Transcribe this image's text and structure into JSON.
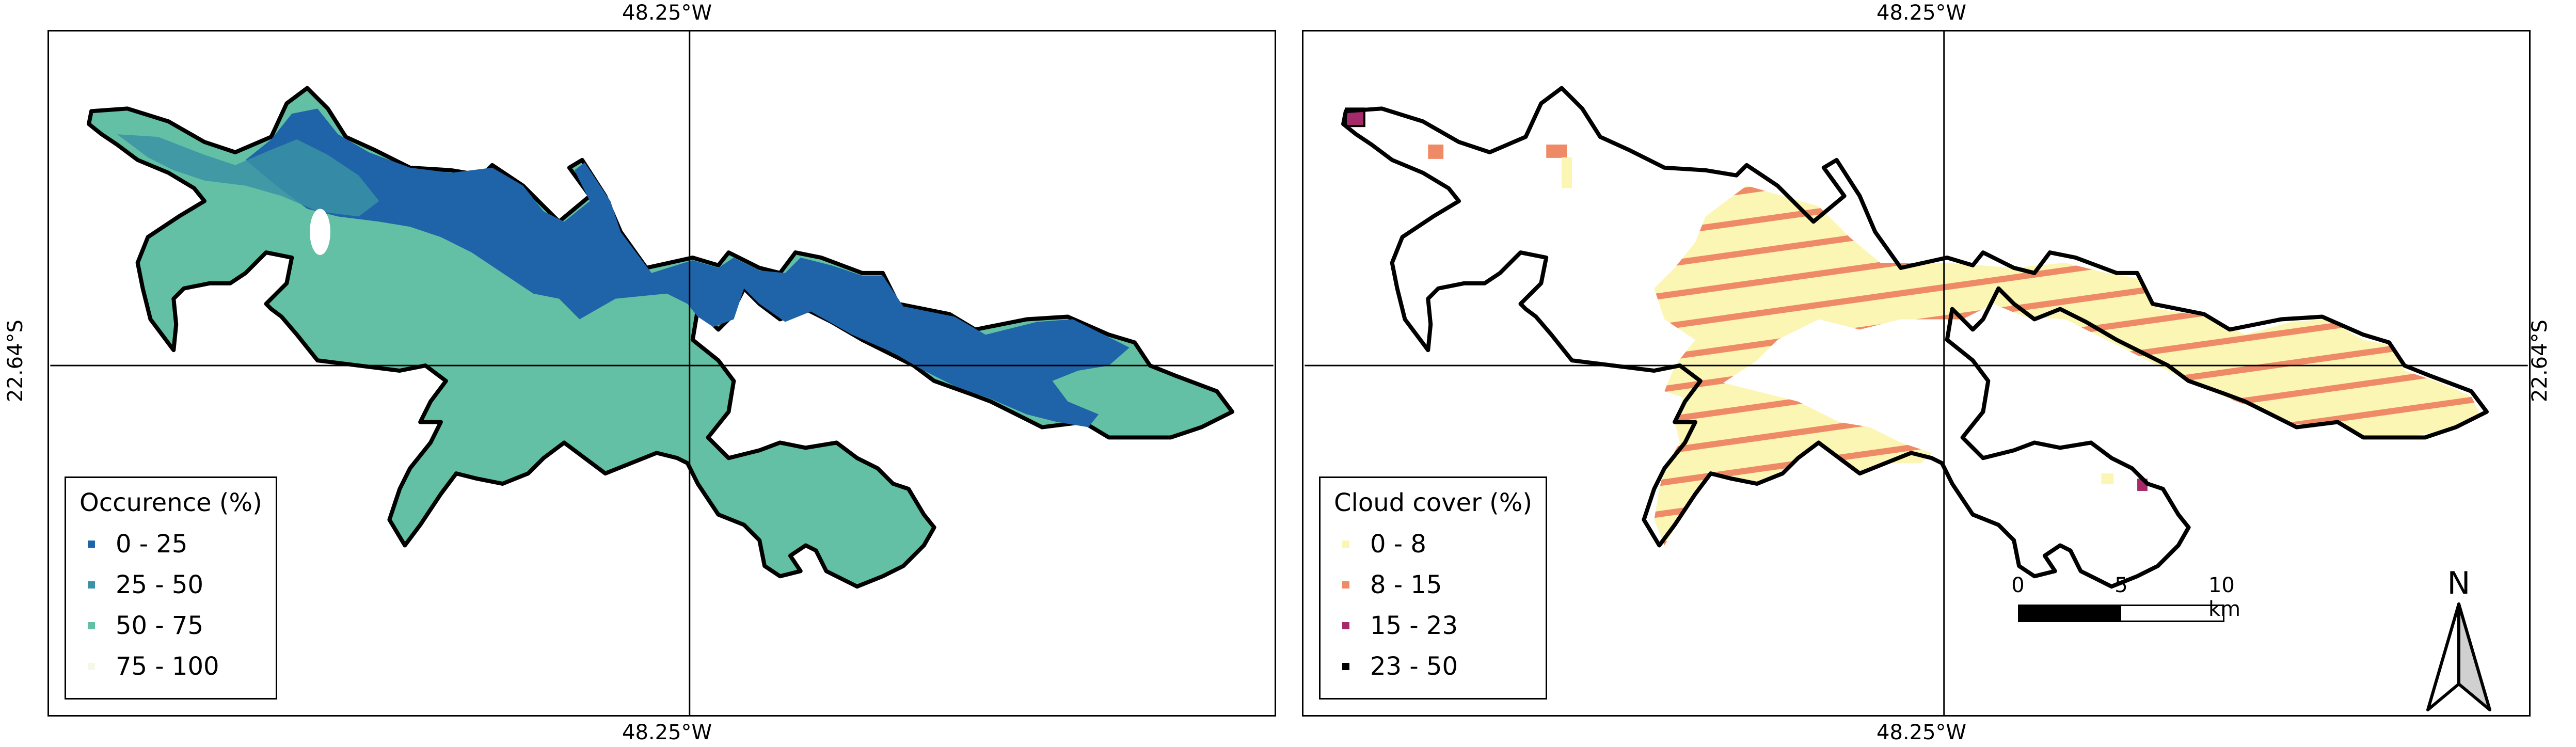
{
  "coords": {
    "top_lon": "48.25°W",
    "bottom_lon": "48.25°W",
    "lat": "22.64°S"
  },
  "left_map": {
    "legend": {
      "title": "Occurence (%)",
      "items": [
        {
          "label": "0 - 25",
          "color": "#1f64a8"
        },
        {
          "label": "25 - 50",
          "color": "#3a92a6"
        },
        {
          "label": "50 - 75",
          "color": "#63c0a4"
        },
        {
          "label": "75 - 100",
          "color": "#f4f8e8"
        }
      ]
    }
  },
  "right_map": {
    "legend": {
      "title": "Cloud cover (%)",
      "items": [
        {
          "label": "0 - 8",
          "color": "#fbf6b4"
        },
        {
          "label": "8 - 15",
          "color": "#ef8a66"
        },
        {
          "label": "15 - 23",
          "color": "#a52a6a"
        },
        {
          "label": "23 - 50",
          "color": "#000000"
        }
      ]
    },
    "scale": {
      "labels": [
        "0",
        "5",
        "10 km"
      ]
    },
    "north_label": "N"
  }
}
